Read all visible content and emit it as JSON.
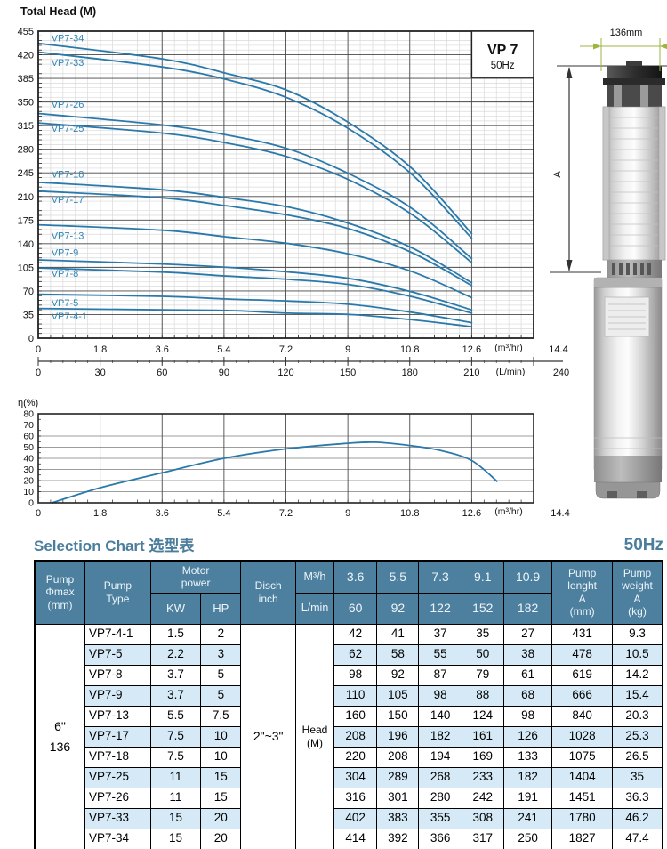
{
  "colors": {
    "curve": "#2a79ab",
    "curve_label": "#2f85b5",
    "accent_blue": "#4b7d9c",
    "table_header_bg": "#4d7f9f",
    "table_header_text": "#edf5f9",
    "row_stripe": "#d5eaf6",
    "grid_minor": "#d9d9d9",
    "grid_major": "#4a4a4a",
    "plot_border": "#222222",
    "dim_green": "#9cb63f"
  },
  "chart_data": [
    {
      "type": "line",
      "title": "Total Head (M)",
      "badge": {
        "model": "VP 7",
        "freq": "50Hz"
      },
      "xlim": [
        0,
        14.4
      ],
      "ylim": [
        0,
        455
      ],
      "y_tick_step": 35,
      "x_m3hr_ticks": [
        "0",
        "1.8",
        "3.6",
        "5.4",
        "7.2",
        "9",
        "10.8",
        "12.6"
      ],
      "x_m3hr_unit": "(m³/hr)",
      "x_m3hr_end": "14.4",
      "x_lmin_ticks": [
        "0",
        "30",
        "60",
        "90",
        "120",
        "150",
        "180",
        "210"
      ],
      "x_lmin_unit": "(L/min)",
      "x_lmin_end": "240",
      "x": [
        0,
        3.6,
        5.5,
        7.3,
        9.1,
        10.9,
        12.6
      ],
      "series": [
        {
          "name": "VP7-34",
          "values": [
            437,
            414,
            392,
            366,
            317,
            250,
            155
          ],
          "label_y": 445
        },
        {
          "name": "VP7-33",
          "values": [
            424,
            402,
            383,
            355,
            308,
            241,
            148
          ],
          "label_y": 409
        },
        {
          "name": "VP7-26",
          "values": [
            333,
            316,
            301,
            280,
            242,
            191,
            118
          ],
          "label_y": 347
        },
        {
          "name": "VP7-25",
          "values": [
            319,
            304,
            289,
            268,
            233,
            182,
            112
          ],
          "label_y": 311
        },
        {
          "name": "VP7-18",
          "values": [
            231,
            220,
            208,
            194,
            169,
            133,
            82
          ],
          "label_y": 243
        },
        {
          "name": "VP7-17",
          "values": [
            218,
            208,
            196,
            182,
            161,
            126,
            78
          ],
          "label_y": 206
        },
        {
          "name": "VP7-13",
          "values": [
            168,
            160,
            150,
            140,
            124,
            98,
            60
          ],
          "label_y": 152
        },
        {
          "name": "VP7-9",
          "values": [
            116,
            110,
            105,
            98,
            88,
            68,
            42
          ],
          "label_y": 127
        },
        {
          "name": "VP7-8",
          "values": [
            104,
            98,
            92,
            87,
            79,
            61,
            37
          ],
          "label_y": 96
        },
        {
          "name": "VP7-5",
          "values": [
            65,
            62,
            58,
            55,
            50,
            38,
            23
          ],
          "label_y": 53
        },
        {
          "name": "VP7-4-1",
          "values": [
            44,
            42,
            41,
            37,
            35,
            27,
            17
          ],
          "label_y": 33
        }
      ]
    },
    {
      "type": "line",
      "title": "η(%)",
      "xlim": [
        0,
        14.4
      ],
      "ylim": [
        0,
        80
      ],
      "y_tick_step": 10,
      "x_ticks": [
        "0",
        "1.8",
        "3.6",
        "5.4",
        "7.2",
        "9",
        "10.8",
        "12.6"
      ],
      "x_unit": "(m³/hr)",
      "x_end": "14.4",
      "series": [
        {
          "name": "efficiency",
          "points": [
            [
              0.4,
              0
            ],
            [
              1.8,
              13.5
            ],
            [
              3.6,
              27
            ],
            [
              5.4,
              40
            ],
            [
              7.2,
              48.5
            ],
            [
              9,
              53.5
            ],
            [
              9.8,
              54.5
            ],
            [
              10.8,
              51.5
            ],
            [
              11.7,
              47
            ],
            [
              12.6,
              38
            ],
            [
              13.35,
              19
            ]
          ]
        }
      ]
    }
  ],
  "pump_figure": {
    "width_label": "136mm",
    "height_label": "A"
  },
  "selection": {
    "title": "Selection Chart 选型表",
    "freq": "50Hz",
    "header": {
      "pump_dia": "Pump\nΦmax\n(mm)",
      "pump_type": "Pump\nType",
      "motor_power": "Motor\npower",
      "kw": "KW",
      "hp": "HP",
      "disch": "Disch\ninch",
      "m3h": "M³/h",
      "lmin": "L/min",
      "flow_m3h": [
        "3.6",
        "5.5",
        "7.3",
        "9.1",
        "10.9"
      ],
      "flow_lmin": [
        "60",
        "92",
        "122",
        "152",
        "182"
      ],
      "length": "Pump\nlenght\nA\n(mm)",
      "weight": "Pump\nweight\nA\n(kg)"
    },
    "spans": {
      "dia_inch": "6\"",
      "dia_mm": "136",
      "disch": "2\"~3\"",
      "head": "Head\n(M)"
    },
    "rows": [
      {
        "type": "VP7-4-1",
        "kw": "1.5",
        "hp": "2",
        "heads": [
          "42",
          "41",
          "37",
          "35",
          "27"
        ],
        "length": "431",
        "weight": "9.3"
      },
      {
        "type": "VP7-5",
        "kw": "2.2",
        "hp": "3",
        "heads": [
          "62",
          "58",
          "55",
          "50",
          "38"
        ],
        "length": "478",
        "weight": "10.5"
      },
      {
        "type": "VP7-8",
        "kw": "3.7",
        "hp": "5",
        "heads": [
          "98",
          "92",
          "87",
          "79",
          "61"
        ],
        "length": "619",
        "weight": "14.2"
      },
      {
        "type": "VP7-9",
        "kw": "3.7",
        "hp": "5",
        "heads": [
          "110",
          "105",
          "98",
          "88",
          "68"
        ],
        "length": "666",
        "weight": "15.4"
      },
      {
        "type": "VP7-13",
        "kw": "5.5",
        "hp": "7.5",
        "heads": [
          "160",
          "150",
          "140",
          "124",
          "98"
        ],
        "length": "840",
        "weight": "20.3"
      },
      {
        "type": "VP7-17",
        "kw": "7.5",
        "hp": "10",
        "heads": [
          "208",
          "196",
          "182",
          "161",
          "126"
        ],
        "length": "1028",
        "weight": "25.3"
      },
      {
        "type": "VP7-18",
        "kw": "7.5",
        "hp": "10",
        "heads": [
          "220",
          "208",
          "194",
          "169",
          "133"
        ],
        "length": "1075",
        "weight": "26.5"
      },
      {
        "type": "VP7-25",
        "kw": "11",
        "hp": "15",
        "heads": [
          "304",
          "289",
          "268",
          "233",
          "182"
        ],
        "length": "1404",
        "weight": "35"
      },
      {
        "type": "VP7-26",
        "kw": "11",
        "hp": "15",
        "heads": [
          "316",
          "301",
          "280",
          "242",
          "191"
        ],
        "length": "1451",
        "weight": "36.3"
      },
      {
        "type": "VP7-33",
        "kw": "15",
        "hp": "20",
        "heads": [
          "402",
          "383",
          "355",
          "308",
          "241"
        ],
        "length": "1780",
        "weight": "46.2"
      },
      {
        "type": "VP7-34",
        "kw": "15",
        "hp": "20",
        "heads": [
          "414",
          "392",
          "366",
          "317",
          "250"
        ],
        "length": "1827",
        "weight": "47.4"
      }
    ]
  }
}
